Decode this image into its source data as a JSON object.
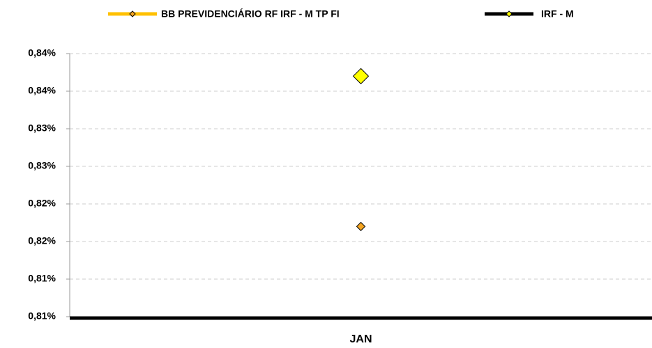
{
  "chart_data": {
    "type": "line",
    "categories": [
      "JAN"
    ],
    "series": [
      {
        "name": "BB PREVIDENCIÁRIO RF IRF - M TP FI",
        "color": "#FFC000",
        "marker_color": "#F5A623",
        "values": [
          0.82
        ]
      },
      {
        "name": "IRF - M",
        "color": "#000000",
        "marker_color": "#FFFF00",
        "values": [
          0.84
        ]
      }
    ],
    "ylim": [
      0.808,
      0.843
    ],
    "yticks": [
      {
        "value": 0.808,
        "label": "0,81%"
      },
      {
        "value": 0.813,
        "label": "0,81%"
      },
      {
        "value": 0.818,
        "label": "0,82%"
      },
      {
        "value": 0.823,
        "label": "0,82%"
      },
      {
        "value": 0.828,
        "label": "0,83%"
      },
      {
        "value": 0.833,
        "label": "0,83%"
      },
      {
        "value": 0.838,
        "label": "0,84%"
      },
      {
        "value": 0.843,
        "label": "0,84%"
      }
    ],
    "grid": true,
    "legend": "top"
  }
}
